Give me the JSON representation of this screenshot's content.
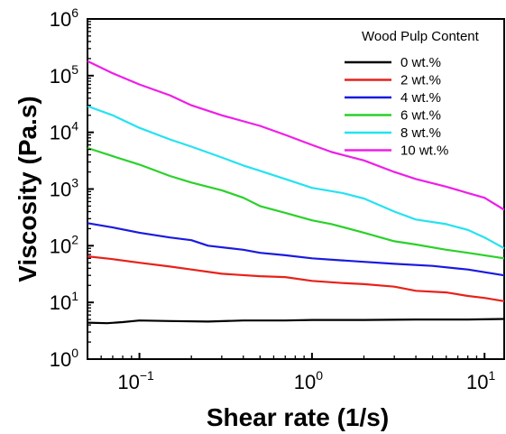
{
  "chart_data": {
    "type": "line",
    "xlabel": "Shear rate (1/s)",
    "ylabel": "Viscosity (Pa.s)",
    "x_scale": "log",
    "y_scale": "log",
    "xlim": [
      0.05,
      13
    ],
    "ylim": [
      1,
      1000000
    ],
    "x_ticks": [
      {
        "value": 0.1,
        "base": "10",
        "exp": "−1"
      },
      {
        "value": 1,
        "base": "10",
        "exp": "0"
      },
      {
        "value": 10,
        "base": "10",
        "exp": "1"
      }
    ],
    "y_ticks": [
      {
        "value": 1,
        "base": "10",
        "exp": "0"
      },
      {
        "value": 10,
        "base": "10",
        "exp": "1"
      },
      {
        "value": 100,
        "base": "10",
        "exp": "2"
      },
      {
        "value": 1000,
        "base": "10",
        "exp": "3"
      },
      {
        "value": 10000,
        "base": "10",
        "exp": "4"
      },
      {
        "value": 100000,
        "base": "10",
        "exp": "5"
      },
      {
        "value": 1000000,
        "base": "10",
        "exp": "6"
      }
    ],
    "grid": false,
    "legend": {
      "title": "Wood Pulp Content",
      "position": "top-right"
    },
    "series": [
      {
        "name": "0 wt.%",
        "color": "#000000",
        "points": [
          [
            0.05,
            4.4
          ],
          [
            0.065,
            4.3
          ],
          [
            0.08,
            4.5
          ],
          [
            0.1,
            4.8
          ],
          [
            0.15,
            4.7
          ],
          [
            0.25,
            4.6
          ],
          [
            0.4,
            4.8
          ],
          [
            0.7,
            4.8
          ],
          [
            1,
            4.9
          ],
          [
            2,
            4.9
          ],
          [
            4,
            5.0
          ],
          [
            8,
            5.0
          ],
          [
            13,
            5.1
          ]
        ]
      },
      {
        "name": "2 wt.%",
        "color": "#e8211a",
        "points": [
          [
            0.05,
            65
          ],
          [
            0.07,
            58
          ],
          [
            0.1,
            50
          ],
          [
            0.15,
            43
          ],
          [
            0.2,
            38
          ],
          [
            0.3,
            32
          ],
          [
            0.5,
            29
          ],
          [
            0.7,
            28
          ],
          [
            1,
            24
          ],
          [
            1.5,
            22
          ],
          [
            2,
            21
          ],
          [
            3,
            19
          ],
          [
            4,
            16
          ],
          [
            6,
            15
          ],
          [
            8,
            13
          ],
          [
            10,
            12
          ],
          [
            13,
            10.5
          ]
        ]
      },
      {
        "name": "4 wt.%",
        "color": "#1a1ae0",
        "points": [
          [
            0.05,
            250
          ],
          [
            0.07,
            210
          ],
          [
            0.1,
            170
          ],
          [
            0.15,
            140
          ],
          [
            0.2,
            125
          ],
          [
            0.25,
            100
          ],
          [
            0.4,
            85
          ],
          [
            0.5,
            75
          ],
          [
            0.7,
            68
          ],
          [
            1,
            60
          ],
          [
            1.5,
            55
          ],
          [
            2,
            52
          ],
          [
            3,
            48
          ],
          [
            5,
            44
          ],
          [
            8,
            38
          ],
          [
            13,
            30
          ]
        ]
      },
      {
        "name": "6 wt.%",
        "color": "#2ad12a",
        "points": [
          [
            0.05,
            5300
          ],
          [
            0.07,
            3800
          ],
          [
            0.1,
            2700
          ],
          [
            0.15,
            1700
          ],
          [
            0.2,
            1300
          ],
          [
            0.3,
            950
          ],
          [
            0.4,
            700
          ],
          [
            0.5,
            500
          ],
          [
            0.7,
            380
          ],
          [
            1,
            280
          ],
          [
            1.3,
            240
          ],
          [
            2,
            170
          ],
          [
            3,
            120
          ],
          [
            4,
            105
          ],
          [
            6,
            85
          ],
          [
            8,
            75
          ],
          [
            13,
            60
          ]
        ]
      },
      {
        "name": "8 wt.%",
        "color": "#25e2f0",
        "points": [
          [
            0.05,
            29000
          ],
          [
            0.07,
            20000
          ],
          [
            0.1,
            12000
          ],
          [
            0.15,
            7500
          ],
          [
            0.2,
            5600
          ],
          [
            0.3,
            3600
          ],
          [
            0.4,
            2600
          ],
          [
            0.5,
            2100
          ],
          [
            0.7,
            1500
          ],
          [
            1,
            1050
          ],
          [
            1.5,
            850
          ],
          [
            2,
            680
          ],
          [
            3,
            400
          ],
          [
            4,
            290
          ],
          [
            6,
            240
          ],
          [
            8,
            190
          ],
          [
            10,
            140
          ],
          [
            13,
            90
          ]
        ]
      },
      {
        "name": "10 wt.%",
        "color": "#ee1ee8",
        "points": [
          [
            0.05,
            180000
          ],
          [
            0.07,
            110000
          ],
          [
            0.1,
            70000
          ],
          [
            0.15,
            45000
          ],
          [
            0.2,
            30000
          ],
          [
            0.3,
            20000
          ],
          [
            0.5,
            13000
          ],
          [
            0.7,
            9000
          ],
          [
            1,
            6000
          ],
          [
            1.3,
            4500
          ],
          [
            2,
            3200
          ],
          [
            3,
            2000
          ],
          [
            4,
            1500
          ],
          [
            6,
            1100
          ],
          [
            8,
            850
          ],
          [
            10,
            700
          ],
          [
            13,
            430
          ]
        ]
      }
    ]
  }
}
